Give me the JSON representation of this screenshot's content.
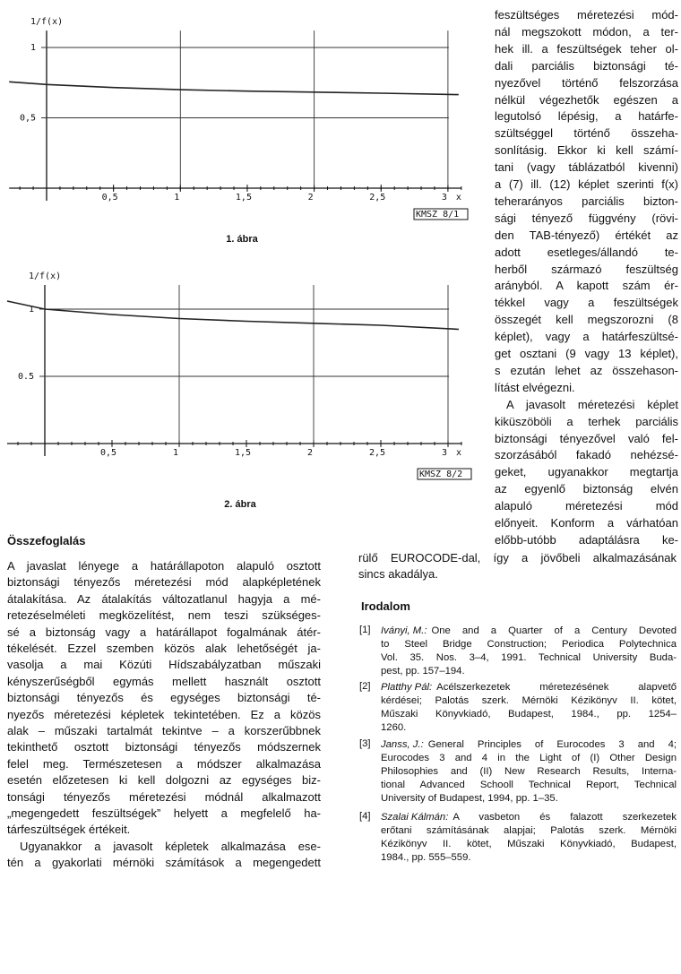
{
  "chart_data": [
    {
      "type": "line",
      "y_label": "1/f(x)",
      "x_label": "x",
      "tag": "KMSZ 8/1",
      "caption": "1. ábra",
      "x": [
        -0.28,
        0,
        0.5,
        1,
        1.5,
        2,
        2.5,
        3.08
      ],
      "values": [
        0.756,
        0.737,
        0.715,
        0.7,
        0.69,
        0.683,
        0.675,
        0.665
      ],
      "color": "#222222",
      "xlim": [
        -0.28,
        3.1
      ],
      "ylim": [
        0,
        1.12
      ],
      "xticks": [
        {
          "value": 0.5,
          "label": "0,5"
        },
        1,
        {
          "value": 1.5,
          "label": "1,5"
        },
        2,
        {
          "value": 2.5,
          "label": "2,5"
        },
        3
      ],
      "yticks": [
        {
          "value": 0.5,
          "label": "0,5"
        },
        1
      ],
      "grid": true
    },
    {
      "type": "line",
      "y_label": "1/f(x)",
      "x_label": "x",
      "tag": "KMSZ 8/2",
      "caption": "2. ábra",
      "x": [
        -0.28,
        0,
        0.5,
        1,
        1.5,
        2,
        2.5,
        3.08
      ],
      "values": [
        1.06,
        1.0,
        0.96,
        0.93,
        0.91,
        0.895,
        0.88,
        0.85
      ],
      "color": "#222222",
      "xlim": [
        -0.28,
        3.1
      ],
      "ylim": [
        0,
        1.18
      ],
      "xticks": [
        {
          "value": 0.5,
          "label": "0,5"
        },
        1,
        {
          "value": 1.5,
          "label": "1,5"
        },
        2,
        {
          "value": 2.5,
          "label": "2,5"
        },
        3
      ],
      "yticks": [
        0.5,
        1
      ],
      "grid": true
    }
  ],
  "right_column": {
    "lines": [
      "feszültséges méretezési mód-",
      "nál megszokott módon, a ter-",
      "hek ill. a feszültségek teher ol-",
      "dali parciális biztonsági té-",
      "nyezővel történő felszorzása",
      "nélkül végezhetők egészen a",
      "legutolsó lépésig, a határfe-",
      "szültséggel történő összeha-",
      "sonlításig. Ekkor ki kell számí-",
      "tani (vagy táblázatból kivenni)",
      "a (7) ill. (12) képlet szerinti f(x)",
      "teherarányos parciális bizton-",
      "sági tényező függvény (rövi-",
      "den TAB-tényező) értékét az",
      "adott esetleges/állandó te-",
      "herből származó feszültség",
      "arányból. A kapott szám ér-",
      "tékkel vagy a feszültségek",
      "összegét kell megszorozni (8",
      "képlet), vagy a határfeszültsé-",
      "get osztani (9 vagy 13 képlet),",
      "s ezután lehet az összehason-",
      "lítást elvégezni.",
      "A javasolt méretezési képlet",
      "kiküszöböli a terhek parciális",
      "biztonsági tényezővel való fel-",
      "szorzásából fakadó nehézsé-",
      "geket, ugyanakkor megtartja",
      "az egyenlő biztonság elvén",
      "alapuló méretezési mód",
      "előnyeit. Konform a várhatóan",
      "előbb-utóbb adaptálásra ke-",
      "rülő EUROCODE-dal, így a jövőbeli alkalmazásának",
      "sincs akadálya."
    ]
  },
  "summary": {
    "heading": "Összefoglalás",
    "lines": [
      "A javaslat lényege a határállapoton alapuló osztott",
      "biztonsági tényezős méretezési mód alapképletének",
      "átalakítása. Az átalakítás változatlanul hagyja a mé-",
      "retezéselméleti megközelítést, nem teszi szükséges-",
      "sé a biztonság vagy a határállapot fogalmának átér-",
      "tékelését. Ezzel szemben közös alak lehetőségét ja-",
      "vasolja a mai Közúti Hídszabályzatban műszaki",
      "kényszerűségből egymás mellett használt osztott",
      "biztonsági tényezős és egységes biztonsági té-",
      "nyezős méretezési képletek tekintetében. Ez a közös",
      "alak – műszaki tartalmát tekintve – a korszerűbbnek",
      "tekinthető osztott biztonsági tényezős módszernek",
      "felel meg. Természetesen a módszer alkalmazása",
      "esetén előzetesen ki kell dolgozni az egységes biz-",
      "tonsági tényezős méretezési módnál alkalmazott",
      "„megengedett feszültségek” helyett a megfelelő ha-",
      "tárfeszültségek értékeit.",
      "Ugyanakkor a javasolt képletek alkalmazása ese-",
      "tén a gyakorlati mérnöki számítások a megengedett"
    ]
  },
  "references": {
    "heading": "Irodalom",
    "items": [
      {
        "number": "[1]",
        "author": "Iványi, M.:",
        "lines": [
          "One and a Quarter of a Century Devoted",
          "to Steel Bridge Construction; Periodica Polytechnica",
          "Vol. 35. Nos. 3–4, 1991. Technical University Buda-",
          "pest, pp. 157–194."
        ]
      },
      {
        "number": "[2]",
        "author": "Platthy Pál:",
        "lines": [
          "Acélszerkezetek méretezésének alapvető",
          "kérdései; Palotás szerk. Mérnöki Kézikönyv II. kötet,",
          "Műszaki Könyvkiadó, Budapest, 1984., pp. 1254–",
          "1260."
        ]
      },
      {
        "number": "[3]",
        "author": "Janss, J.:",
        "lines": [
          "General Principles of Eurocodes 3 and 4;",
          "Eurocodes 3 and 4 in the Light of (I) Other Design",
          "Philosophies and (II) New Research Results, Interna-",
          "tional Advanced Schooll Technical Report, Technical",
          "University of Budapest, 1994, pp. 1–35."
        ]
      },
      {
        "number": "[4]",
        "author": "Szalai Kálmán:",
        "lines": [
          "A vasbeton és falazott szerkezetek",
          "erőtani számításának alapjai; Palotás szerk. Mérnöki",
          "Kézikönyv II. kötet, Műszaki Könyvkiadó, Budapest,",
          "1984., pp. 555–559."
        ]
      }
    ]
  }
}
